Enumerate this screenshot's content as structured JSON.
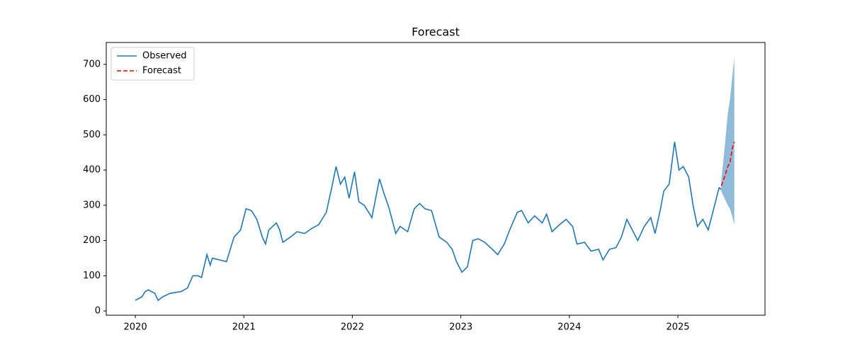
{
  "chart_data": {
    "type": "line",
    "title": "Forecast",
    "xlim": [
      2019.732,
      2025.803
    ],
    "xticks": [
      2020,
      2021,
      2022,
      2023,
      2024,
      2025
    ],
    "ylim": [
      -12,
      762
    ],
    "yticks": [
      0,
      100,
      200,
      300,
      400,
      500,
      600,
      700
    ],
    "legend": "upper left",
    "series": [
      {
        "name": "Observed",
        "color": "#1f77b4",
        "style": "solid",
        "x": [
          2020.0,
          2020.06,
          2020.09,
          2020.12,
          2020.18,
          2020.21,
          2020.25,
          2020.32,
          2020.42,
          2020.48,
          2020.53,
          2020.58,
          2020.61,
          2020.66,
          2020.69,
          2020.71,
          2020.84,
          2020.91,
          2020.97,
          2021.02,
          2021.07,
          2021.12,
          2021.17,
          2021.2,
          2021.23,
          2021.3,
          2021.33,
          2021.36,
          2021.43,
          2021.49,
          2021.56,
          2021.63,
          2021.69,
          2021.76,
          2021.81,
          2021.85,
          2021.89,
          2021.93,
          2021.97,
          2022.02,
          2022.06,
          2022.11,
          2022.18,
          2022.25,
          2022.29,
          2022.34,
          2022.4,
          2022.44,
          2022.51,
          2022.57,
          2022.62,
          2022.67,
          2022.73,
          2022.8,
          2022.87,
          2022.92,
          2022.96,
          2023.01,
          2023.06,
          2023.11,
          2023.16,
          2023.22,
          2023.29,
          2023.34,
          2023.4,
          2023.45,
          2023.52,
          2023.56,
          2023.62,
          2023.68,
          2023.75,
          2023.79,
          2023.84,
          2023.91,
          2023.97,
          2024.03,
          2024.07,
          2024.14,
          2024.2,
          2024.27,
          2024.31,
          2024.37,
          2024.43,
          2024.48,
          2024.53,
          2024.58,
          2024.63,
          2024.69,
          2024.75,
          2024.79,
          2024.84,
          2024.87,
          2024.92,
          2024.97,
          2025.01,
          2025.05,
          2025.1,
          2025.14,
          2025.18,
          2025.23,
          2025.28,
          2025.33,
          2025.38,
          2025.4
        ],
        "values": [
          30,
          40,
          55,
          60,
          50,
          30,
          40,
          50,
          55,
          65,
          100,
          100,
          95,
          160,
          130,
          150,
          140,
          210,
          230,
          290,
          285,
          260,
          210,
          190,
          230,
          250,
          230,
          195,
          210,
          225,
          220,
          235,
          245,
          280,
          350,
          410,
          360,
          380,
          320,
          395,
          310,
          300,
          265,
          375,
          335,
          290,
          220,
          240,
          225,
          290,
          305,
          290,
          285,
          210,
          195,
          175,
          140,
          110,
          125,
          200,
          205,
          195,
          175,
          160,
          190,
          230,
          280,
          285,
          250,
          270,
          250,
          275,
          225,
          245,
          260,
          240,
          190,
          195,
          170,
          175,
          145,
          175,
          180,
          210,
          260,
          230,
          200,
          240,
          265,
          220,
          290,
          340,
          360,
          480,
          400,
          410,
          380,
          300,
          240,
          260,
          230,
          290,
          350,
          345
        ]
      },
      {
        "name": "Forecast",
        "color": "#ff0000",
        "style": "dashed",
        "x": [
          2025.4,
          2025.43,
          2025.46,
          2025.48,
          2025.5,
          2025.52
        ],
        "values": [
          355,
          380,
          410,
          420,
          460,
          480
        ]
      }
    ],
    "interval": {
      "color": "#1f77b4",
      "x": [
        2025.4,
        2025.43,
        2025.46,
        2025.48,
        2025.5,
        2025.52
      ],
      "lower": [
        340,
        320,
        300,
        290,
        270,
        245
      ],
      "upper": [
        370,
        460,
        560,
        600,
        660,
        720
      ]
    }
  }
}
